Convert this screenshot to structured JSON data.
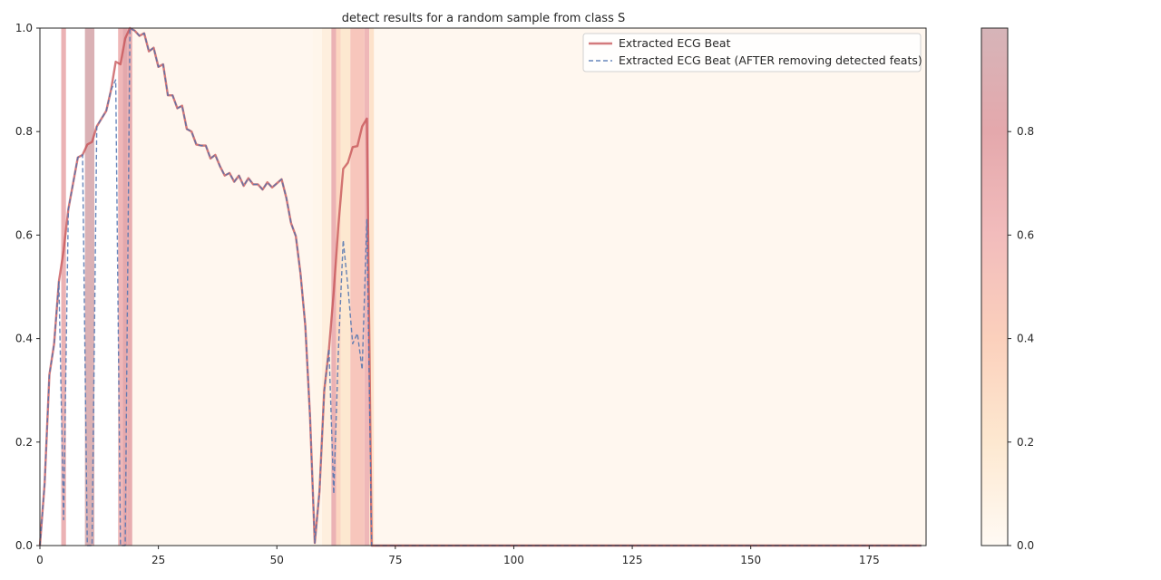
{
  "chart_data": {
    "type": "line",
    "title": "detect results for a random sample from class S",
    "xlabel": "",
    "ylabel": "",
    "xlim": [
      0,
      187
    ],
    "ylim": [
      0,
      1.0
    ],
    "x_ticks": [
      0,
      25,
      50,
      75,
      100,
      125,
      150,
      175
    ],
    "y_ticks": [
      0.0,
      0.2,
      0.4,
      0.6,
      0.8,
      1.0
    ],
    "x_tick_labels": [
      "0",
      "25",
      "50",
      "75",
      "100",
      "125",
      "150",
      "175"
    ],
    "y_tick_labels": [
      "0.0",
      "0.2",
      "0.4",
      "0.6",
      "0.8",
      "1.0"
    ],
    "grid": false,
    "legend_position": "top-right",
    "series": [
      {
        "name": "Extracted ECG Beat",
        "color": "#c44e52",
        "style": "solid",
        "x": [
          0,
          1,
          2,
          3,
          4,
          5,
          6,
          7,
          8,
          9,
          10,
          11,
          12,
          13,
          14,
          15,
          16,
          17,
          18,
          19,
          20,
          21,
          22,
          23,
          24,
          25,
          26,
          27,
          28,
          29,
          30,
          31,
          32,
          33,
          34,
          35,
          36,
          37,
          38,
          39,
          40,
          41,
          42,
          43,
          44,
          45,
          46,
          47,
          48,
          49,
          50,
          51,
          52,
          53,
          54,
          55,
          56,
          57,
          58,
          59,
          60,
          61,
          62,
          63,
          64,
          65,
          66,
          67,
          68,
          69,
          70,
          186
        ],
        "y": [
          0.0,
          0.12,
          0.33,
          0.39,
          0.51,
          0.57,
          0.65,
          0.7,
          0.75,
          0.755,
          0.775,
          0.78,
          0.81,
          0.825,
          0.84,
          0.88,
          0.935,
          0.93,
          0.98,
          1.0,
          0.995,
          0.985,
          0.99,
          0.955,
          0.962,
          0.925,
          0.93,
          0.87,
          0.87,
          0.845,
          0.85,
          0.805,
          0.8,
          0.775,
          0.773,
          0.773,
          0.748,
          0.755,
          0.733,
          0.715,
          0.72,
          0.703,
          0.715,
          0.695,
          0.71,
          0.698,
          0.698,
          0.688,
          0.702,
          0.692,
          0.7,
          0.708,
          0.672,
          0.623,
          0.598,
          0.525,
          0.425,
          0.25,
          0.005,
          0.105,
          0.3,
          0.38,
          0.49,
          0.62,
          0.728,
          0.74,
          0.77,
          0.772,
          0.81,
          0.825,
          0.0,
          0.0
        ]
      },
      {
        "name": "Extracted ECG Beat (AFTER removing detected feats)",
        "color": "#4c72b0",
        "style": "dashed",
        "x": [
          0,
          1,
          2,
          3,
          4,
          5,
          6,
          7,
          8,
          9,
          10,
          11,
          12,
          13,
          14,
          15,
          16,
          17,
          18,
          19,
          20,
          21,
          22,
          23,
          24,
          25,
          26,
          27,
          28,
          29,
          30,
          31,
          32,
          33,
          34,
          35,
          36,
          37,
          38,
          39,
          40,
          41,
          42,
          43,
          44,
          45,
          46,
          47,
          48,
          49,
          50,
          51,
          52,
          53,
          54,
          55,
          56,
          57,
          58,
          59,
          60,
          61,
          62,
          63,
          64,
          65,
          66,
          67,
          68,
          69,
          70,
          186
        ],
        "y": [
          0.0,
          0.12,
          0.33,
          0.39,
          0.51,
          0.05,
          0.65,
          0.7,
          0.75,
          0.755,
          0.0,
          0.0,
          0.81,
          0.825,
          0.84,
          0.88,
          0.9,
          0.0,
          0.0,
          1.0,
          0.995,
          0.985,
          0.99,
          0.955,
          0.962,
          0.925,
          0.93,
          0.87,
          0.87,
          0.845,
          0.85,
          0.805,
          0.8,
          0.775,
          0.773,
          0.773,
          0.748,
          0.755,
          0.733,
          0.715,
          0.72,
          0.703,
          0.715,
          0.695,
          0.71,
          0.698,
          0.698,
          0.688,
          0.702,
          0.692,
          0.7,
          0.708,
          0.672,
          0.623,
          0.598,
          0.525,
          0.425,
          0.25,
          0.005,
          0.105,
          0.3,
          0.38,
          0.1,
          0.38,
          0.59,
          0.5,
          0.39,
          0.41,
          0.34,
          0.63,
          0.0,
          0.0
        ]
      }
    ],
    "highlight_bands": [
      {
        "x0": 4.5,
        "x1": 5.5,
        "value": 0.7
      },
      {
        "x0": 9.5,
        "x1": 11.5,
        "value": 0.95
      },
      {
        "x0": 16.5,
        "x1": 17.5,
        "value": 0.65
      },
      {
        "x0": 17.5,
        "x1": 18.5,
        "value": 0.8
      },
      {
        "x0": 18.5,
        "x1": 19.5,
        "value": 0.75
      },
      {
        "x0": 19.5,
        "x1": 57.5,
        "value": 0.03
      },
      {
        "x0": 57.5,
        "x1": 59.5,
        "value": 0.05
      },
      {
        "x0": 59.5,
        "x1": 61.5,
        "value": 0.12
      },
      {
        "x0": 61.5,
        "x1": 62.5,
        "value": 0.7
      },
      {
        "x0": 62.5,
        "x1": 63.5,
        "value": 0.35
      },
      {
        "x0": 63.5,
        "x1": 65.5,
        "value": 0.2
      },
      {
        "x0": 65.5,
        "x1": 68.5,
        "value": 0.5
      },
      {
        "x0": 68.5,
        "x1": 69.5,
        "value": 0.65
      },
      {
        "x0": 69.5,
        "x1": 70.5,
        "value": 0.25
      },
      {
        "x0": 70.5,
        "x1": 187,
        "value": 0.03
      }
    ],
    "colorbar": {
      "range": [
        0,
        1.0
      ],
      "ticks": [
        0.0,
        0.2,
        0.4,
        0.6,
        0.8
      ],
      "tick_labels": [
        "0.0",
        "0.2",
        "0.4",
        "0.6",
        "0.8"
      ],
      "colormap": [
        "#fffaf4",
        "#fde8d0",
        "#fbd0bc",
        "#f2bcbc",
        "#e4a8ac",
        "#d6b4b8"
      ]
    }
  }
}
